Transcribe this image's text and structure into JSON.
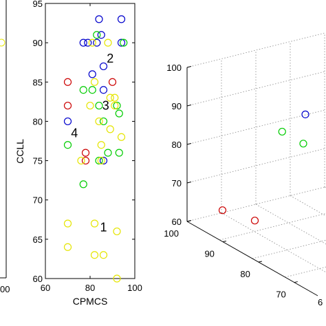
{
  "chart_data": [
    {
      "type": "scatter",
      "panel": "left-partial",
      "yticks": [],
      "xticks": [
        "00"
      ],
      "series": [
        {
          "color": "#e5e500",
          "points": [
            {
              "x": null,
              "y": 90
            }
          ]
        }
      ]
    },
    {
      "type": "scatter",
      "panel": "middle",
      "xlabel": "CPMCS",
      "ylabel": "CCLL",
      "xlim": [
        60,
        100
      ],
      "ylim": [
        60,
        95
      ],
      "xticks": [
        "60",
        "80",
        "100"
      ],
      "yticks": [
        "60",
        "65",
        "70",
        "75",
        "80",
        "85",
        "90",
        "95"
      ],
      "grid": false,
      "cluster_labels": [
        {
          "text": "1",
          "x": 86,
          "y": 66.5
        },
        {
          "text": "2",
          "x": 89,
          "y": 88
        },
        {
          "text": "3",
          "x": 87,
          "y": 82
        },
        {
          "text": "4",
          "x": 73,
          "y": 78.5
        }
      ],
      "series": [
        {
          "color": "#0000cc",
          "points": [
            [
              84,
              93
            ],
            [
              94,
              93
            ],
            [
              85,
              91
            ],
            [
              77,
              90
            ],
            [
              79,
              90
            ],
            [
              83,
              90
            ],
            [
              94,
              90
            ],
            [
              81,
              86
            ],
            [
              86,
              87
            ],
            [
              86,
              84
            ],
            [
              70,
              80
            ],
            [
              86,
              75
            ]
          ]
        },
        {
          "color": "#00cc00",
          "points": [
            [
              83,
              91
            ],
            [
              95,
              90
            ],
            [
              77,
              84
            ],
            [
              81,
              84
            ],
            [
              84,
              82
            ],
            [
              92,
              82
            ],
            [
              93,
              81
            ],
            [
              86,
              80
            ],
            [
              70,
              77
            ],
            [
              84,
              75
            ],
            [
              88,
              76
            ],
            [
              93,
              76
            ],
            [
              77,
              72
            ]
          ]
        },
        {
          "color": "#cc0000",
          "points": [
            [
              70,
              85
            ],
            [
              90,
              85
            ],
            [
              70,
              82
            ],
            [
              78,
              76
            ],
            [
              78,
              75
            ]
          ]
        },
        {
          "color": "#e5e500",
          "points": [
            [
              81,
              90
            ],
            [
              88,
              90
            ],
            [
              82,
              85
            ],
            [
              89,
              83
            ],
            [
              91,
              83
            ],
            [
              80,
              82
            ],
            [
              91,
              82
            ],
            [
              84,
              80
            ],
            [
              89,
              79
            ],
            [
              85,
              77
            ],
            [
              85,
              75
            ],
            [
              94,
              78
            ],
            [
              76,
              75
            ],
            [
              70,
              67
            ],
            [
              82,
              67
            ],
            [
              92,
              66
            ],
            [
              70,
              64
            ],
            [
              82,
              63
            ],
            [
              86,
              63
            ],
            [
              92,
              60
            ]
          ]
        }
      ]
    },
    {
      "type": "scatter",
      "panel": "right-3d",
      "view": "3d",
      "grid": true,
      "zlim": [
        60,
        100
      ],
      "zticks": [
        "60",
        "70",
        "80",
        "90",
        "100"
      ],
      "yticks_depth": [
        "100",
        "90",
        "80",
        "70"
      ],
      "xticks_right": [
        "6"
      ],
      "series": [
        {
          "color": "#0000cc",
          "points": [
            [
              1,
              0.55,
              94
            ]
          ]
        },
        {
          "color": "#00cc00",
          "points": [
            [
              0.35,
              0.75,
              82
            ],
            [
              0.6,
              0.8,
              81
            ]
          ]
        },
        {
          "color": "#cc0000",
          "points": [
            [
              0.1,
              0.3,
              62
            ],
            [
              0.3,
              0.5,
              60
            ]
          ]
        }
      ]
    }
  ]
}
